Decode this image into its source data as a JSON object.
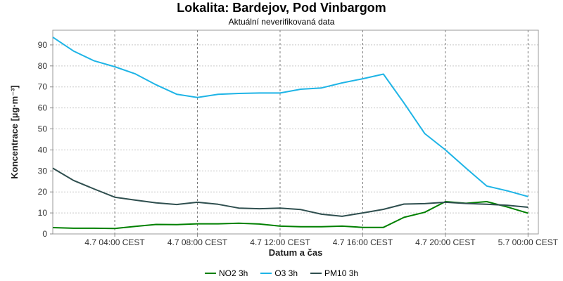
{
  "chart_data": {
    "type": "line",
    "title": "Lokalita: Bardejov, Pod Vinbargom",
    "subtitle": "Aktuální neverifikovaná data",
    "xlabel": "Datum a čas",
    "ylabel": "Koncentrace [µg·m⁻³]",
    "ylim": [
      0,
      97
    ],
    "yticks": [
      0,
      10,
      20,
      30,
      40,
      50,
      60,
      70,
      80,
      90
    ],
    "xlim": [
      1,
      24.5
    ],
    "xticks": [
      {
        "x": 4,
        "label": "4.7 04:00 CEST"
      },
      {
        "x": 8,
        "label": "4.7 08:00 CEST"
      },
      {
        "x": 12,
        "label": "4.7 12:00 CEST"
      },
      {
        "x": 16,
        "label": "4.7 16:00 CEST"
      },
      {
        "x": 20,
        "label": "4.7 20:00 CEST"
      },
      {
        "x": 24,
        "label": "5.7 00:00 CEST"
      }
    ],
    "grid": true,
    "legend_position": "bottom",
    "x": [
      1,
      2,
      3,
      4,
      5,
      6,
      7,
      8,
      9,
      10,
      11,
      12,
      13,
      14,
      15,
      16,
      17,
      18,
      19,
      20,
      21,
      22,
      23,
      24
    ],
    "series": [
      {
        "name": "NO2 3h",
        "color": "#008000",
        "values": [
          3.0,
          2.7,
          2.7,
          2.6,
          3.6,
          4.5,
          4.4,
          4.8,
          4.8,
          5.1,
          4.7,
          3.7,
          3.4,
          3.4,
          3.7,
          3.1,
          3.1,
          7.9,
          10.3,
          15.4,
          14.6,
          15.4,
          12.8,
          9.9
        ]
      },
      {
        "name": "O3 3h",
        "color": "#1eb4e6",
        "values": [
          93.7,
          87.1,
          82.4,
          79.6,
          76.2,
          71.0,
          66.5,
          65.0,
          66.5,
          66.9,
          67.1,
          67.1,
          68.9,
          69.5,
          71.9,
          73.9,
          76.1,
          62.3,
          47.8,
          40.0,
          31.3,
          22.8,
          20.5,
          17.8
        ]
      },
      {
        "name": "PM10 3h",
        "color": "#2f4f4f",
        "values": [
          31.3,
          25.5,
          21.4,
          17.5,
          16.1,
          14.8,
          14.0,
          15.1,
          14.1,
          12.3,
          12.0,
          12.3,
          11.6,
          9.4,
          8.4,
          10.0,
          11.7,
          14.2,
          14.4,
          15.1,
          14.5,
          14.1,
          13.6,
          12.7
        ]
      }
    ]
  }
}
